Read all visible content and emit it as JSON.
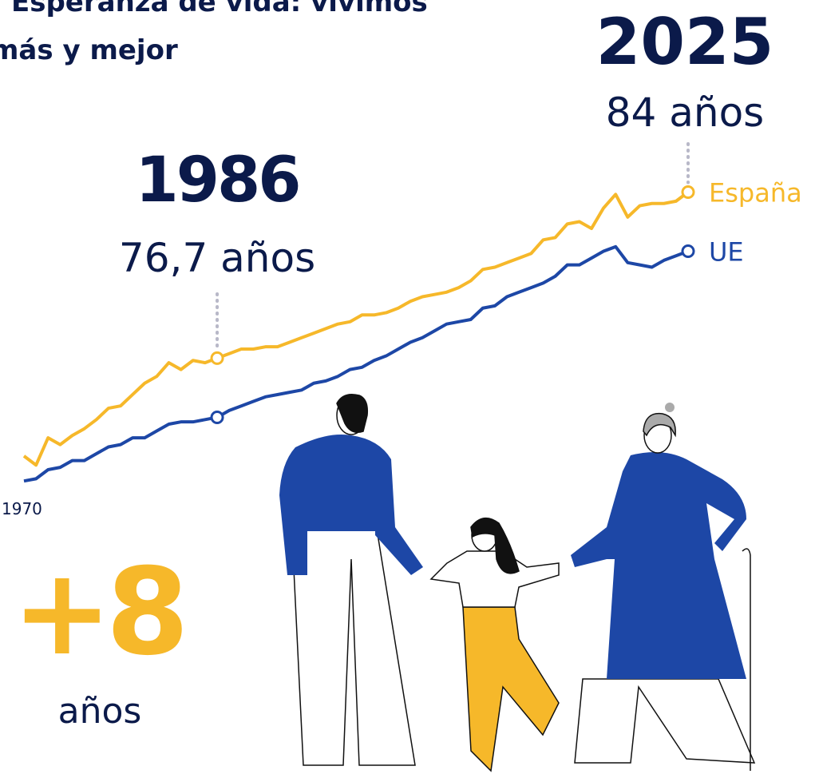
{
  "chart_data": {
    "type": "line",
    "title": [
      "Esperanza de vida: vivimos",
      "más y mejor"
    ],
    "x": [
      1970,
      1971,
      1972,
      1973,
      1974,
      1975,
      1976,
      1977,
      1978,
      1979,
      1980,
      1981,
      1982,
      1983,
      1984,
      1985,
      1986,
      1987,
      1988,
      1989,
      1990,
      1991,
      1992,
      1993,
      1994,
      1995,
      1996,
      1997,
      1998,
      1999,
      2000,
      2001,
      2002,
      2003,
      2004,
      2005,
      2006,
      2007,
      2008,
      2009,
      2010,
      2011,
      2012,
      2013,
      2014,
      2015,
      2016,
      2017,
      2018,
      2019,
      2020,
      2021,
      2022,
      2023,
      2024,
      2025
    ],
    "xlim": [
      1970,
      2025
    ],
    "ylim": [
      70.5,
      85
    ],
    "series": [
      {
        "name": "España",
        "color": "#f6b82a",
        "values": [
          72.4,
          72.0,
          73.2,
          72.9,
          73.3,
          73.6,
          74.0,
          74.5,
          74.6,
          75.1,
          75.6,
          75.9,
          76.5,
          76.2,
          76.6,
          76.5,
          76.7,
          76.9,
          77.1,
          77.1,
          77.2,
          77.2,
          77.4,
          77.6,
          77.8,
          78.0,
          78.2,
          78.3,
          78.6,
          78.6,
          78.7,
          78.9,
          79.2,
          79.4,
          79.5,
          79.6,
          79.8,
          80.1,
          80.6,
          80.7,
          80.9,
          81.1,
          81.3,
          81.9,
          82.0,
          82.6,
          82.7,
          82.4,
          83.3,
          83.9,
          82.9,
          83.4,
          83.5,
          83.5,
          83.6,
          84.0
        ],
        "value_labels": [
          null,
          null,
          null,
          null,
          null,
          null,
          null,
          null,
          null,
          null,
          null,
          null,
          null,
          null,
          null,
          null,
          "76,7 años",
          null,
          null,
          null,
          null,
          null,
          null,
          null,
          null,
          null,
          null,
          null,
          null,
          null,
          null,
          null,
          null,
          null,
          null,
          null,
          null,
          null,
          null,
          null,
          null,
          null,
          null,
          null,
          null,
          null,
          null,
          null,
          null,
          null,
          null,
          null,
          null,
          null,
          null,
          "84 años"
        ]
      },
      {
        "name": "UE",
        "color": "#1d47a6",
        "values": [
          71.3,
          71.4,
          71.8,
          71.9,
          72.2,
          72.2,
          72.5,
          72.8,
          72.9,
          73.2,
          73.2,
          73.5,
          73.8,
          73.9,
          73.9,
          74.0,
          74.1,
          74.4,
          74.6,
          74.8,
          75.0,
          75.1,
          75.2,
          75.3,
          75.6,
          75.7,
          75.9,
          76.2,
          76.3,
          76.6,
          76.8,
          77.1,
          77.4,
          77.6,
          77.9,
          78.2,
          78.3,
          78.4,
          78.9,
          79.0,
          79.4,
          79.6,
          79.8,
          80.0,
          80.3,
          80.8,
          80.8,
          81.1,
          81.4,
          81.6,
          80.9,
          80.8,
          80.7,
          81.0,
          81.2,
          81.4
        ]
      }
    ],
    "annotations": [
      "+8",
      "años"
    ]
  }
}
